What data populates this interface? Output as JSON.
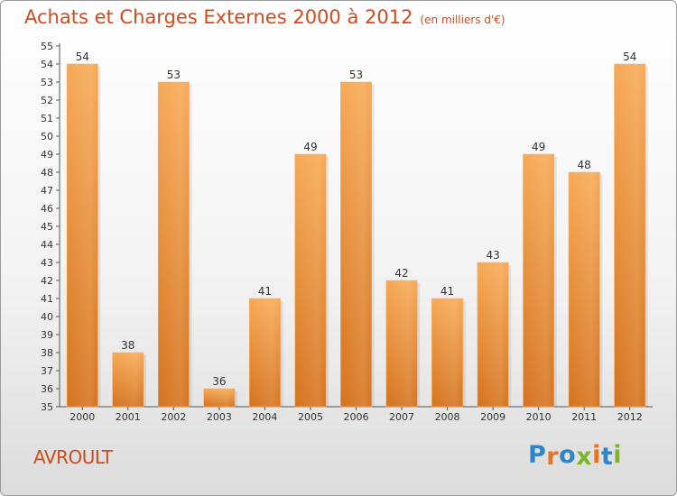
{
  "chart_data": {
    "type": "bar",
    "title": "Achats et Charges Externes 2000 à 2012",
    "subtitle": "(en milliers d'€)",
    "categories": [
      "2000",
      "2001",
      "2002",
      "2003",
      "2004",
      "2005",
      "2006",
      "2007",
      "2008",
      "2009",
      "2010",
      "2011",
      "2012"
    ],
    "values": [
      54,
      38,
      53,
      36,
      41,
      49,
      53,
      42,
      41,
      43,
      49,
      48,
      54
    ],
    "ylim": [
      35,
      55
    ],
    "yticks": [
      35,
      36,
      37,
      38,
      39,
      40,
      41,
      42,
      43,
      44,
      45,
      46,
      47,
      48,
      49,
      50,
      51,
      52,
      53,
      54,
      55
    ],
    "grid": false,
    "bar_color": "#f08a30"
  },
  "footer": {
    "commune": "AVROULT",
    "logo_letters": [
      {
        "ch": "P",
        "color": "#2e86c8"
      },
      {
        "ch": "r",
        "color": "#e8731c"
      },
      {
        "ch": "o",
        "color": "#2e86c8"
      },
      {
        "ch": "x",
        "color": "#7cb52a"
      },
      {
        "ch": "i",
        "color": "#e8731c"
      },
      {
        "ch": "t",
        "color": "#2e86c8"
      },
      {
        "ch": "i",
        "color": "#7cb52a"
      }
    ]
  }
}
